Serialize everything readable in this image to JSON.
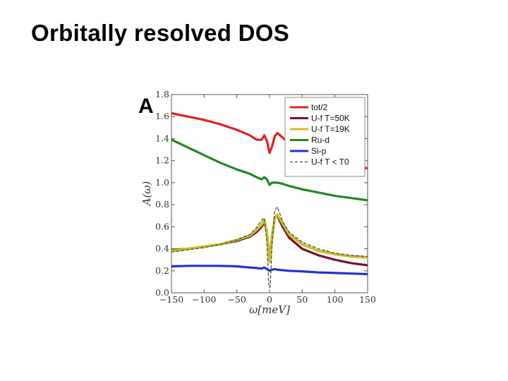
{
  "slide": {
    "title": "Orbitally resolved DOS"
  },
  "chart_data": {
    "type": "line",
    "panel_label": "A",
    "xlabel": "ω[meV]",
    "ylabel": "A(ω)",
    "xlim": [
      -150,
      150
    ],
    "ylim": [
      0.0,
      1.8
    ],
    "xticks": [
      -150,
      -100,
      -50,
      0,
      50,
      100,
      150
    ],
    "xtick_labels": [
      "−150",
      "−100",
      "−50",
      "0",
      "50",
      "100",
      "150"
    ],
    "yticks": [
      0.0,
      0.2,
      0.4,
      0.6,
      0.8,
      1.0,
      1.2,
      1.4,
      1.6,
      1.8
    ],
    "ytick_labels": [
      "0.0",
      "0.2",
      "0.4",
      "0.6",
      "0.8",
      "1.0",
      "1.2",
      "1.4",
      "1.6",
      "1.8"
    ],
    "legend_position": "top-right",
    "series": [
      {
        "name": "tot/2",
        "color": "#dd2222",
        "width": 3.2,
        "dash": "",
        "x": [
          -150,
          -125,
          -100,
          -75,
          -50,
          -30,
          -20,
          -12,
          -8,
          -4,
          0,
          4,
          8,
          12,
          20,
          30,
          50,
          75,
          100,
          125,
          150
        ],
        "y": [
          1.63,
          1.6,
          1.57,
          1.53,
          1.48,
          1.43,
          1.39,
          1.39,
          1.43,
          1.38,
          1.27,
          1.33,
          1.42,
          1.45,
          1.41,
          1.36,
          1.3,
          1.24,
          1.19,
          1.16,
          1.13
        ]
      },
      {
        "name": "U-f T=50K",
        "color": "#7a1030",
        "width": 3.2,
        "dash": "",
        "x": [
          -150,
          -125,
          -100,
          -75,
          -50,
          -30,
          -20,
          -12,
          -8,
          -4,
          0,
          4,
          8,
          12,
          20,
          30,
          50,
          75,
          100,
          125,
          150
        ],
        "y": [
          0.39,
          0.4,
          0.42,
          0.44,
          0.47,
          0.51,
          0.55,
          0.6,
          0.64,
          0.55,
          0.3,
          0.52,
          0.68,
          0.7,
          0.6,
          0.5,
          0.4,
          0.34,
          0.3,
          0.27,
          0.25
        ]
      },
      {
        "name": "U-f T=19K",
        "color": "#c8c020",
        "width": 3.6,
        "dash": "",
        "x": [
          -150,
          -125,
          -100,
          -75,
          -50,
          -30,
          -20,
          -12,
          -8,
          -4,
          0,
          4,
          8,
          12,
          20,
          30,
          50,
          75,
          100,
          125,
          150
        ],
        "y": [
          0.38,
          0.4,
          0.42,
          0.44,
          0.48,
          0.52,
          0.57,
          0.62,
          0.66,
          0.55,
          0.28,
          0.5,
          0.68,
          0.71,
          0.63,
          0.53,
          0.44,
          0.38,
          0.35,
          0.33,
          0.32
        ]
      },
      {
        "name": "Ru-d",
        "color": "#228822",
        "width": 3.2,
        "dash": "",
        "x": [
          -150,
          -125,
          -100,
          -75,
          -50,
          -30,
          -20,
          -12,
          -8,
          -4,
          0,
          4,
          8,
          12,
          20,
          30,
          50,
          75,
          100,
          125,
          150
        ],
        "y": [
          1.39,
          1.32,
          1.25,
          1.18,
          1.12,
          1.08,
          1.05,
          1.03,
          1.05,
          1.03,
          0.98,
          1.0,
          1.0,
          1.0,
          0.99,
          0.97,
          0.94,
          0.91,
          0.88,
          0.86,
          0.84
        ]
      },
      {
        "name": "Si-p",
        "color": "#2233cc",
        "width": 3.2,
        "dash": "",
        "x": [
          -150,
          -125,
          -100,
          -75,
          -50,
          -30,
          -20,
          -12,
          -8,
          -4,
          0,
          4,
          8,
          12,
          20,
          30,
          50,
          75,
          100,
          125,
          150
        ],
        "y": [
          0.24,
          0.245,
          0.245,
          0.245,
          0.24,
          0.23,
          0.225,
          0.22,
          0.23,
          0.215,
          0.2,
          0.21,
          0.215,
          0.21,
          0.205,
          0.2,
          0.195,
          0.185,
          0.18,
          0.175,
          0.17
        ]
      },
      {
        "name": "U-f T < T0",
        "color": "#444444",
        "width": 1.2,
        "dash": "4,3",
        "x": [
          -150,
          -125,
          -100,
          -75,
          -50,
          -30,
          -20,
          -12,
          -8,
          -4,
          -1,
          1,
          4,
          8,
          12,
          20,
          30,
          50,
          75,
          100,
          125,
          150
        ],
        "y": [
          0.37,
          0.39,
          0.41,
          0.44,
          0.48,
          0.53,
          0.59,
          0.66,
          0.68,
          0.45,
          0.05,
          0.05,
          0.45,
          0.75,
          0.78,
          0.65,
          0.55,
          0.46,
          0.4,
          0.36,
          0.34,
          0.33
        ]
      }
    ]
  }
}
